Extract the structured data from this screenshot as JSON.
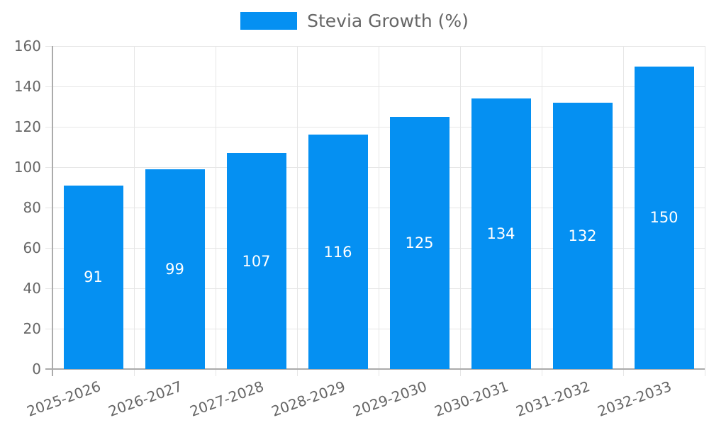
{
  "chart_data": {
    "type": "bar",
    "title": "",
    "legend": {
      "position": "top",
      "label": "Stevia Growth (%)"
    },
    "categories": [
      "2025-2026",
      "2026-2027",
      "2027-2028",
      "2028-2029",
      "2029-2030",
      "2030-2031",
      "2031-2032",
      "2032-2033"
    ],
    "series": [
      {
        "name": "Stevia Growth (%)",
        "values": [
          91,
          99,
          107,
          116,
          125,
          134,
          132,
          150
        ]
      }
    ],
    "value_labels": [
      "91",
      "99",
      "107",
      "116",
      "125",
      "134",
      "132",
      "150"
    ],
    "value_label_position": "center-of-bar",
    "xlabel": "",
    "ylabel": "",
    "ylim": [
      0,
      160
    ],
    "ytick_labels": [
      "0",
      "20",
      "40",
      "60",
      "80",
      "100",
      "120",
      "140",
      "160"
    ],
    "yticks": [
      0,
      20,
      40,
      60,
      80,
      100,
      120,
      140,
      160
    ],
    "grid": "both",
    "colors": {
      "bar": "#0590f2",
      "value_label": "#ffffff",
      "text": "#666666",
      "grid": "#e6e6e6",
      "axis": "#ababab"
    }
  }
}
